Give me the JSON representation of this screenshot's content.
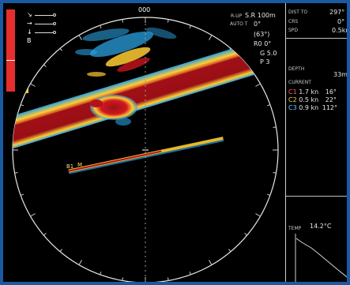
{
  "top_bearing": "000",
  "legend": [
    {
      "glyph": "↘"
    },
    {
      "glyph": "→"
    },
    {
      "glyph": "↓"
    },
    {
      "glyph": "B"
    }
  ],
  "readouts": [
    {
      "key": "range",
      "label": "R-UP",
      "value": "S.R 100m"
    },
    {
      "key": "tilt",
      "label": "AUTO T",
      "value": "0°"
    },
    {
      "key": "heading",
      "label": "",
      "value": "(63°)"
    },
    {
      "key": "r0",
      "label": "",
      "value": "R0 0°"
    },
    {
      "key": "gain",
      "label": "",
      "value": "G 5.0"
    },
    {
      "key": "p",
      "label": "",
      "value": "P 3"
    }
  ],
  "panel": {
    "top_rows": [
      {
        "label": "DIST TO",
        "value": "297°"
      },
      {
        "label": "CRS",
        "value": "0°"
      },
      {
        "label": "SPD",
        "value": "0.5kn"
      }
    ],
    "depth_label": "DEPTH",
    "depth_value": "33m",
    "currents_label": "CURRENT",
    "currents": [
      {
        "id": "C1",
        "speed": "1.7 kn",
        "dir": "16°",
        "color": "#ff5a5a"
      },
      {
        "id": "C2",
        "speed": "0.5 kn",
        "dir": "22°",
        "color": "#ffd24a"
      },
      {
        "id": "C3",
        "speed": "0.9 kn",
        "dir": "112°",
        "color": "#5fd0ff"
      }
    ],
    "temp_value": "14.2°C",
    "temp_label": "TEMP"
  },
  "colors": {
    "background": "#000000",
    "frame": "#1a5aa3",
    "echo_strong": "#b3121c",
    "echo_mid": "#ffcc33",
    "echo_weak": "#2aa0e0",
    "gain_bar": "#e62e2e"
  }
}
